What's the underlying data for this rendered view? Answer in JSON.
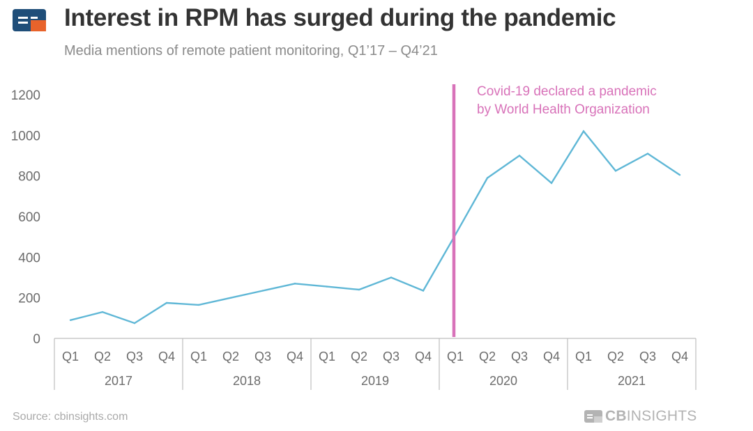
{
  "header": {
    "title": "Interest in RPM has surged during the pandemic",
    "subtitle": "Media mentions of remote patient monitoring, Q1’17 – Q4’21",
    "logo_icon": "cb-insights-logo-icon"
  },
  "footer": {
    "source": "Source: cbinsights.com",
    "brand_bold": "CB",
    "brand_rest": "INSIGHTS",
    "brand_icon": "cb-insights-logo-icon"
  },
  "colors": {
    "line": "#5fb7d6",
    "annotation": "#d872b9",
    "logo_blue": "#1f4e79",
    "logo_orange": "#e8632b",
    "axis_text": "#6b6b6b",
    "title": "#333333"
  },
  "chart_data": {
    "type": "line",
    "title": "Interest in RPM has surged during the pandemic",
    "subtitle": "Media mentions of remote patient monitoring, Q1’17 – Q4’21",
    "xlabel": "",
    "ylabel": "",
    "ylim": [
      0,
      1200
    ],
    "yticks": [
      0,
      200,
      400,
      600,
      800,
      1000,
      1200
    ],
    "grid": false,
    "categories": [
      "Q1",
      "Q2",
      "Q3",
      "Q4",
      "Q1",
      "Q2",
      "Q3",
      "Q4",
      "Q1",
      "Q2",
      "Q3",
      "Q4",
      "Q1",
      "Q2",
      "Q3",
      "Q4",
      "Q1",
      "Q2",
      "Q3",
      "Q4"
    ],
    "years": [
      "2017",
      "2018",
      "2019",
      "2020",
      "2021"
    ],
    "series": [
      {
        "values": [
          90,
          130,
          75,
          175,
          165,
          200,
          235,
          270,
          255,
          240,
          300,
          235,
          510,
          790,
          900,
          765,
          1020,
          825,
          910,
          805
        ]
      }
    ],
    "annotations": [
      {
        "position": "Q1 2020",
        "line1": "Covid-19 declared a pandemic",
        "line2": "by World Health Organization"
      }
    ]
  }
}
